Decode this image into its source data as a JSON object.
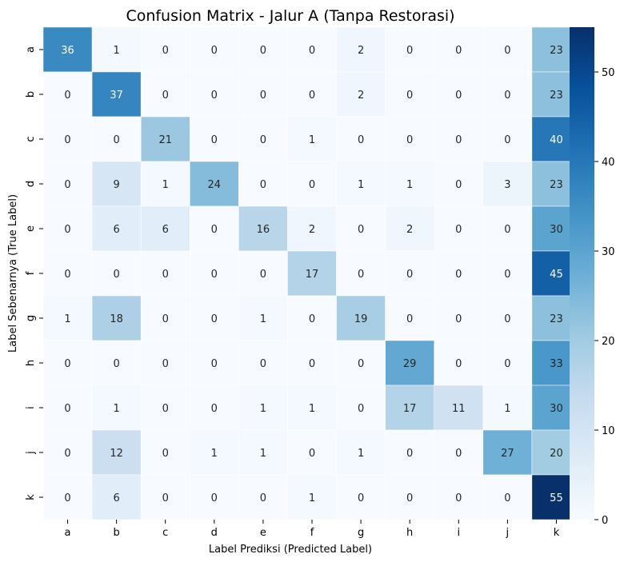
{
  "chart_data": {
    "type": "heatmap",
    "title": "Confusion Matrix - Jalur A (Tanpa Restorasi)",
    "xlabel": "Label Prediksi (Predicted Label)",
    "ylabel": "Label Sebenarnya (True Label)",
    "x_categories": [
      "a",
      "b",
      "c",
      "d",
      "e",
      "f",
      "g",
      "h",
      "i",
      "j",
      "k"
    ],
    "y_categories": [
      "a",
      "b",
      "c",
      "d",
      "e",
      "f",
      "g",
      "h",
      "i",
      "j",
      "k"
    ],
    "values": [
      [
        36,
        1,
        0,
        0,
        0,
        0,
        2,
        0,
        0,
        0,
        23
      ],
      [
        0,
        37,
        0,
        0,
        0,
        0,
        2,
        0,
        0,
        0,
        23
      ],
      [
        0,
        0,
        21,
        0,
        0,
        1,
        0,
        0,
        0,
        0,
        40
      ],
      [
        0,
        9,
        1,
        24,
        0,
        0,
        1,
        1,
        0,
        3,
        23
      ],
      [
        0,
        6,
        6,
        0,
        16,
        2,
        0,
        2,
        0,
        0,
        30
      ],
      [
        0,
        0,
        0,
        0,
        0,
        17,
        0,
        0,
        0,
        0,
        45
      ],
      [
        1,
        18,
        0,
        0,
        1,
        0,
        19,
        0,
        0,
        0,
        23
      ],
      [
        0,
        0,
        0,
        0,
        0,
        0,
        0,
        29,
        0,
        0,
        33
      ],
      [
        0,
        1,
        0,
        0,
        1,
        1,
        0,
        17,
        11,
        1,
        30
      ],
      [
        0,
        12,
        0,
        1,
        1,
        0,
        1,
        0,
        0,
        27,
        20
      ],
      [
        0,
        6,
        0,
        0,
        0,
        1,
        0,
        0,
        0,
        0,
        55
      ]
    ],
    "colormap": "Blues",
    "color_low": "#f7fbff",
    "color_high": "#08306b",
    "vmin": 0,
    "vmax": 55,
    "colorbar_ticks": [
      0,
      10,
      20,
      30,
      40,
      50
    ],
    "colorbar_tick_labels": [
      "0",
      "10",
      "20",
      "30",
      "40",
      "50"
    ],
    "annotations": true,
    "grid": false
  }
}
